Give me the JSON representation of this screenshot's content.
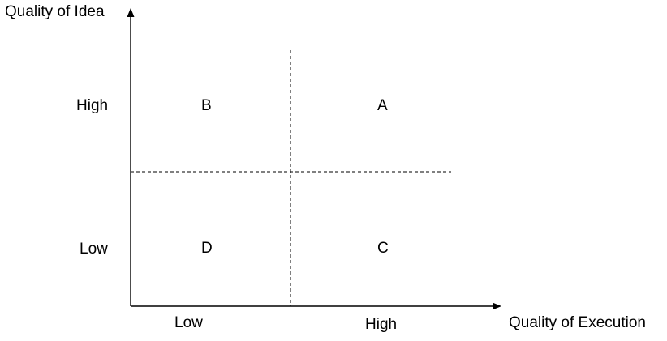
{
  "axes": {
    "y_title": "Quality of Idea",
    "x_title": "Quality of Execution",
    "y_ticks": {
      "high": "High",
      "low": "Low"
    },
    "x_ticks": {
      "low": "Low",
      "high": "High"
    }
  },
  "quadrants": {
    "top_left": "B",
    "top_right": "A",
    "bottom_left": "D",
    "bottom_right": "C"
  },
  "colors": {
    "line": "#000000",
    "text": "#000000",
    "background": "#ffffff"
  }
}
